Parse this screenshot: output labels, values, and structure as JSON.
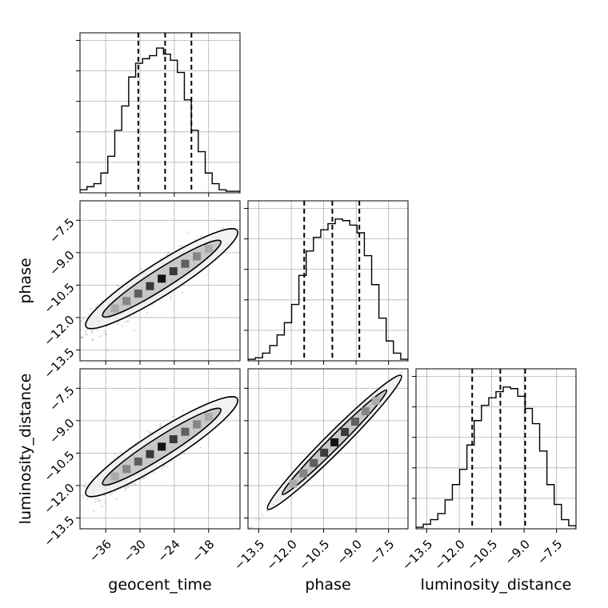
{
  "chart_data": {
    "type": "corner",
    "parameters": [
      {
        "key": "geocent_time",
        "label": "geocent_time",
        "range": [
          -40.5,
          -12.5
        ],
        "ticks": [
          -36,
          -30,
          -24,
          -18
        ],
        "tick_labels": [
          "−36",
          "−30",
          "−24",
          "−18"
        ],
        "quantiles": [
          -30.3,
          -25.6,
          -21.0
        ],
        "hist": [
          0.02,
          0.04,
          0.06,
          0.13,
          0.24,
          0.41,
          0.57,
          0.76,
          0.85,
          0.88,
          0.9,
          0.95,
          0.91,
          0.87,
          0.79,
          0.61,
          0.41,
          0.27,
          0.13,
          0.06,
          0.02,
          0.01,
          0.01
        ]
      },
      {
        "key": "phase",
        "label": "phase",
        "range": [
          -14.0,
          -6.6
        ],
        "ticks": [
          -13.5,
          -12.0,
          -10.5,
          -9.0,
          -7.5
        ],
        "tick_labels": [
          "−13.5",
          "−12.0",
          "−10.5",
          "−9.0",
          "−7.5"
        ],
        "quantiles": [
          -11.4,
          -10.1,
          -8.85
        ],
        "hist": [
          0.01,
          0.02,
          0.05,
          0.1,
          0.17,
          0.25,
          0.37,
          0.56,
          0.72,
          0.81,
          0.86,
          0.9,
          0.93,
          0.92,
          0.89,
          0.84,
          0.69,
          0.5,
          0.28,
          0.13,
          0.05,
          0.01
        ]
      },
      {
        "key": "luminosity_distance",
        "label": "luminosity_distance",
        "range": [
          -14.0,
          -6.6
        ],
        "ticks": [
          -13.5,
          -12.0,
          -10.5,
          -9.0,
          -7.5
        ],
        "tick_labels": [
          "−13.5",
          "−12.0",
          "−10.5",
          "−9.0",
          "−7.5"
        ],
        "quantiles": [
          -11.4,
          -10.1,
          -8.95
        ],
        "hist": [
          0.01,
          0.03,
          0.06,
          0.1,
          0.19,
          0.29,
          0.39,
          0.55,
          0.71,
          0.81,
          0.86,
          0.9,
          0.93,
          0.92,
          0.87,
          0.79,
          0.69,
          0.51,
          0.29,
          0.16,
          0.06,
          0.02
        ]
      }
    ],
    "scatter_pairs": [
      {
        "x": "geocent_time",
        "y": "phase",
        "slope": 0.168,
        "intercept": -5.8,
        "sigma_along": 4.6,
        "sigma_perp": 0.45
      },
      {
        "x": "geocent_time",
        "y": "luminosity_distance",
        "slope": 0.168,
        "intercept": -5.8,
        "sigma_along": 4.6,
        "sigma_perp": 0.45
      },
      {
        "x": "phase",
        "y": "luminosity_distance",
        "slope": 1.0,
        "intercept": 0.0,
        "sigma_along": 1.5,
        "sigma_perp": 0.05
      }
    ],
    "quantile_probabilities": [
      0.16,
      0.5,
      0.84
    ],
    "grid": true
  }
}
